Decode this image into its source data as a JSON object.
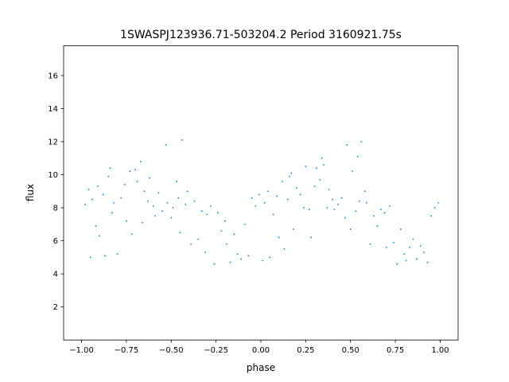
{
  "chart_data": {
    "type": "scatter",
    "title": "1SWASPJ123936.71-503204.2 Period 3160921.75s",
    "xlabel": "phase",
    "ylabel": "flux",
    "xlim": [
      -1.1,
      1.1
    ],
    "ylim": [
      0.0,
      17.8
    ],
    "xticks": [
      -1.0,
      -0.75,
      -0.5,
      -0.25,
      0.0,
      0.25,
      0.5,
      0.75,
      1.0
    ],
    "xtick_labels": [
      "−1.00",
      "−0.75",
      "−0.50",
      "−0.25",
      "0.00",
      "0.25",
      "0.50",
      "0.75",
      "1.00"
    ],
    "yticks": [
      2,
      4,
      6,
      8,
      10,
      12,
      14,
      16
    ],
    "ytick_labels": [
      "2",
      "4",
      "6",
      "8",
      "10",
      "12",
      "14",
      "16"
    ],
    "grid": false,
    "marker_color": "#1f77b4",
    "series": [
      {
        "x": [
          -0.98,
          -0.96,
          -0.95,
          -0.94,
          -0.92,
          -0.91,
          -0.9,
          -0.88,
          -0.87,
          -0.85,
          -0.84,
          -0.83,
          -0.82,
          -0.8,
          -0.78,
          -0.76,
          -0.75,
          -0.73,
          -0.72,
          -0.7,
          -0.69,
          -0.67,
          -0.66,
          -0.65,
          -0.63,
          -0.62,
          -0.6,
          -0.59,
          -0.57,
          -0.55,
          -0.53,
          -0.52,
          -0.5,
          -0.49,
          -0.47,
          -0.46,
          -0.45,
          -0.44,
          -0.42,
          -0.41,
          -0.39,
          -0.37,
          -0.35,
          -0.33,
          -0.31,
          -0.3,
          -0.28,
          -0.26,
          -0.24,
          -0.22,
          -0.2,
          -0.19,
          -0.17,
          -0.15,
          -0.13,
          -0.11,
          -0.09,
          -0.07,
          -0.05,
          -0.03,
          -0.01,
          0.01,
          0.02,
          0.04,
          0.05,
          0.07,
          0.09,
          0.1,
          0.12,
          0.13,
          0.15,
          0.16,
          0.17,
          0.18,
          0.2,
          0.22,
          0.24,
          0.25,
          0.27,
          0.28,
          0.3,
          0.31,
          0.33,
          0.34,
          0.35,
          0.37,
          0.38,
          0.4,
          0.41,
          0.43,
          0.45,
          0.47,
          0.48,
          0.5,
          0.51,
          0.53,
          0.54,
          0.55,
          0.56,
          0.58,
          0.59,
          0.61,
          0.63,
          0.65,
          0.67,
          0.69,
          0.7,
          0.72,
          0.74,
          0.76,
          0.78,
          0.8,
          0.81,
          0.83,
          0.85,
          0.87,
          0.89,
          0.91,
          0.93,
          0.95,
          0.97,
          0.99
        ],
        "y": [
          8.2,
          9.1,
          5.0,
          8.5,
          6.9,
          9.3,
          6.3,
          8.8,
          5.1,
          9.9,
          10.4,
          7.7,
          8.3,
          5.2,
          8.6,
          9.4,
          7.2,
          10.2,
          6.4,
          10.3,
          9.6,
          10.8,
          7.1,
          9.0,
          8.4,
          9.8,
          8.1,
          7.5,
          8.9,
          7.8,
          11.8,
          8.3,
          7.4,
          8.0,
          9.6,
          8.6,
          6.5,
          12.1,
          8.2,
          9.0,
          5.8,
          8.4,
          6.1,
          7.8,
          5.3,
          7.6,
          8.1,
          4.6,
          7.7,
          6.6,
          7.2,
          5.8,
          4.7,
          6.4,
          5.2,
          4.9,
          7.0,
          5.1,
          8.6,
          8.1,
          8.8,
          4.8,
          8.3,
          9.0,
          5.0,
          7.6,
          8.7,
          6.2,
          9.6,
          5.5,
          8.5,
          9.9,
          10.1,
          6.7,
          9.2,
          8.8,
          8.0,
          10.5,
          7.9,
          6.2,
          9.3,
          10.4,
          9.7,
          11.0,
          10.6,
          8.0,
          9.1,
          8.5,
          7.9,
          8.2,
          8.6,
          7.4,
          11.8,
          6.7,
          10.2,
          7.8,
          11.1,
          8.4,
          12.0,
          9.0,
          8.3,
          5.8,
          7.5,
          6.9,
          7.9,
          7.7,
          5.6,
          8.1,
          5.9,
          4.6,
          6.7,
          5.2,
          4.8,
          5.6,
          6.1,
          4.9,
          5.7,
          5.3,
          4.7,
          7.5,
          8.0,
          8.3
        ]
      }
    ]
  }
}
